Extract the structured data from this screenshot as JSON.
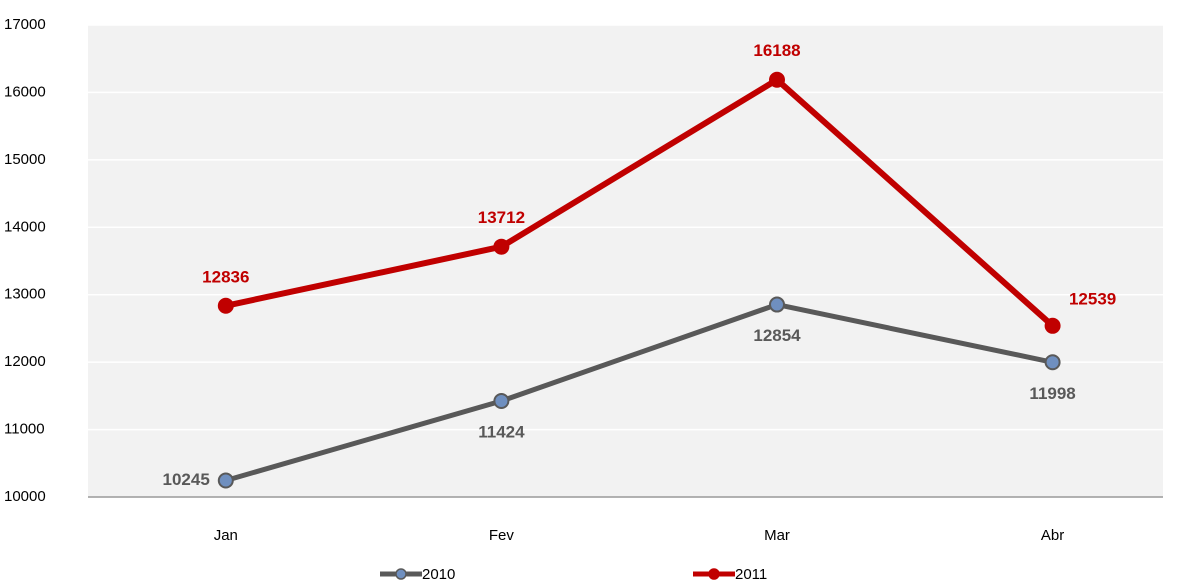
{
  "chart_data": {
    "type": "line",
    "categories": [
      "Jan",
      "Fev",
      "Mar",
      "Abr"
    ],
    "series": [
      {
        "name": "2010",
        "color": "#595959",
        "marker_color": "#6f8fbf",
        "values": [
          10245,
          11424,
          12854,
          11998
        ]
      },
      {
        "name": "2011",
        "color": "#c00000",
        "marker_color": "#c00000",
        "values": [
          12836,
          13712,
          16188,
          12539
        ]
      }
    ],
    "ylim": [
      10000,
      17000
    ],
    "yticks": [
      10000,
      11000,
      12000,
      13000,
      14000,
      15000,
      16000,
      17000
    ],
    "grid": true,
    "legend": "bottom"
  }
}
